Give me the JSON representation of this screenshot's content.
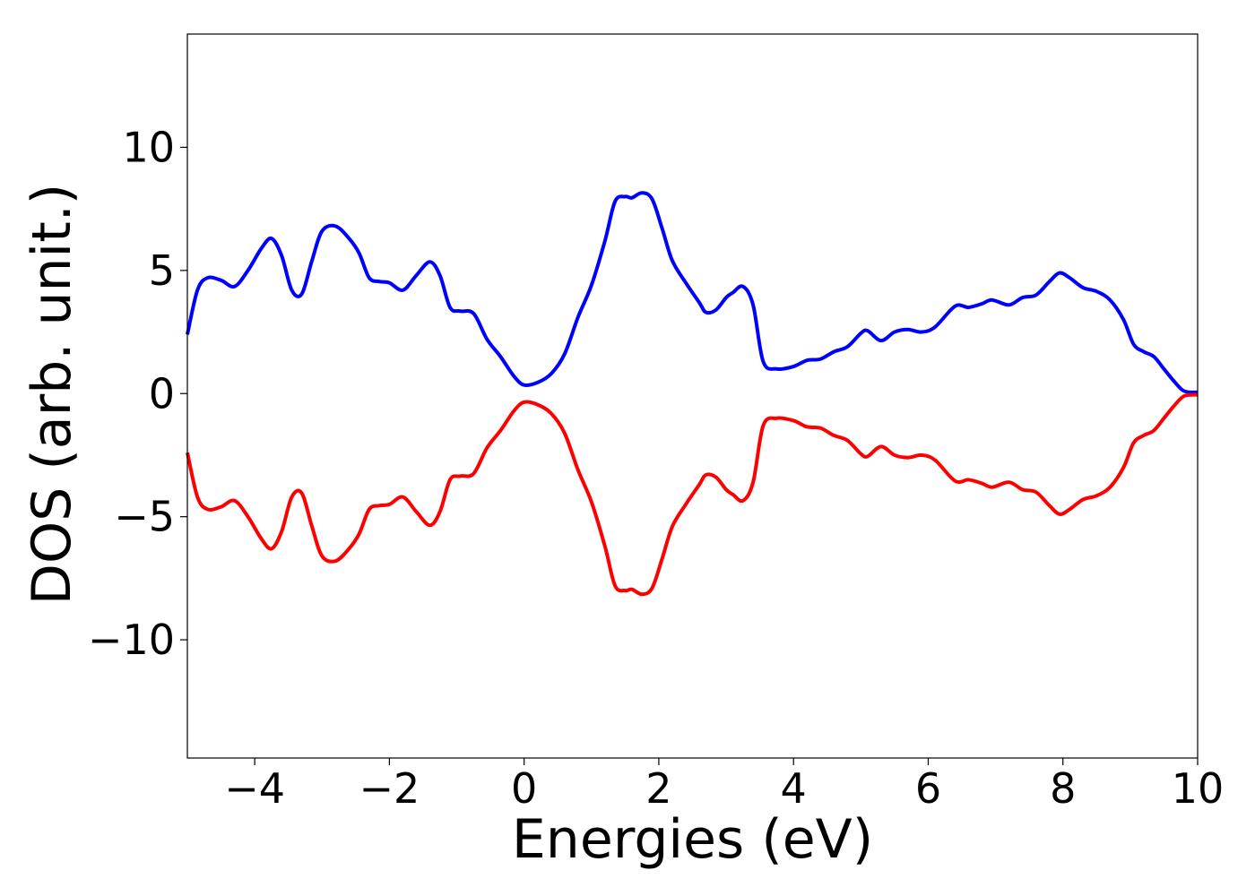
{
  "chart_data": {
    "type": "line",
    "title": "",
    "xlabel": "Energies (eV)",
    "ylabel": "DOS (arb. unit.)",
    "xlim": [
      -5,
      10
    ],
    "ylim": [
      -14.8,
      14.6
    ],
    "xticks": [
      -4,
      -2,
      0,
      2,
      4,
      6,
      8,
      10
    ],
    "yticks": [
      -10,
      -5,
      0,
      5,
      10
    ],
    "xtick_labels": [
      "−4",
      "−2",
      "0",
      "2",
      "4",
      "6",
      "8",
      "10"
    ],
    "ytick_labels": [
      "−10",
      "−5",
      "0",
      "5",
      "10"
    ],
    "grid": false,
    "legend": null,
    "mirror": true,
    "series": [
      {
        "color": "#0000ff",
        "x": [
          -5.0,
          -4.85,
          -4.7,
          -4.5,
          -4.3,
          -4.1,
          -3.9,
          -3.75,
          -3.6,
          -3.45,
          -3.3,
          -3.15,
          -3.0,
          -2.8,
          -2.6,
          -2.45,
          -2.3,
          -2.15,
          -2.0,
          -1.8,
          -1.6,
          -1.4,
          -1.25,
          -1.1,
          -0.95,
          -0.75,
          -0.55,
          -0.35,
          -0.15,
          0.0,
          0.2,
          0.4,
          0.6,
          0.8,
          1.0,
          1.2,
          1.35,
          1.5,
          1.6,
          1.75,
          1.9,
          2.05,
          2.2,
          2.4,
          2.6,
          2.7,
          2.85,
          3.0,
          3.1,
          3.25,
          3.4,
          3.55,
          3.75,
          4.0,
          4.2,
          4.4,
          4.6,
          4.8,
          5.0,
          5.1,
          5.3,
          5.5,
          5.7,
          5.9,
          6.1,
          6.4,
          6.6,
          6.8,
          6.95,
          7.2,
          7.4,
          7.6,
          7.8,
          7.95,
          8.1,
          8.3,
          8.5,
          8.7,
          8.9,
          9.05,
          9.2,
          9.35,
          9.5,
          9.65,
          9.8,
          10.0
        ],
        "values": [
          2.4,
          4.2,
          4.7,
          4.6,
          4.35,
          5.0,
          5.9,
          6.3,
          5.6,
          4.2,
          4.05,
          5.4,
          6.6,
          6.8,
          6.3,
          5.7,
          4.7,
          4.55,
          4.5,
          4.2,
          4.8,
          5.35,
          4.8,
          3.5,
          3.35,
          3.25,
          2.2,
          1.5,
          0.7,
          0.35,
          0.45,
          0.8,
          1.6,
          3.1,
          4.4,
          6.2,
          7.8,
          8.0,
          7.95,
          8.15,
          7.9,
          6.7,
          5.4,
          4.5,
          3.7,
          3.3,
          3.4,
          3.9,
          4.1,
          4.35,
          3.6,
          1.3,
          1.0,
          1.1,
          1.35,
          1.4,
          1.7,
          1.9,
          2.45,
          2.55,
          2.15,
          2.5,
          2.6,
          2.5,
          2.7,
          3.55,
          3.5,
          3.65,
          3.8,
          3.6,
          3.9,
          4.0,
          4.55,
          4.9,
          4.7,
          4.3,
          4.15,
          3.8,
          3.0,
          2.0,
          1.7,
          1.5,
          1.0,
          0.5,
          0.1,
          0.05
        ]
      },
      {
        "color": "#ff0000",
        "x": [
          -5.0,
          -4.85,
          -4.7,
          -4.5,
          -4.3,
          -4.1,
          -3.9,
          -3.75,
          -3.6,
          -3.45,
          -3.3,
          -3.15,
          -3.0,
          -2.8,
          -2.6,
          -2.45,
          -2.3,
          -2.15,
          -2.0,
          -1.8,
          -1.6,
          -1.4,
          -1.25,
          -1.1,
          -0.95,
          -0.75,
          -0.55,
          -0.35,
          -0.15,
          0.0,
          0.2,
          0.4,
          0.6,
          0.8,
          1.0,
          1.2,
          1.35,
          1.5,
          1.6,
          1.75,
          1.9,
          2.05,
          2.2,
          2.4,
          2.6,
          2.7,
          2.85,
          3.0,
          3.1,
          3.25,
          3.4,
          3.55,
          3.75,
          4.0,
          4.2,
          4.4,
          4.6,
          4.8,
          5.0,
          5.1,
          5.3,
          5.5,
          5.7,
          5.9,
          6.1,
          6.4,
          6.6,
          6.8,
          6.95,
          7.2,
          7.4,
          7.6,
          7.8,
          7.95,
          8.1,
          8.3,
          8.5,
          8.7,
          8.9,
          9.05,
          9.2,
          9.35,
          9.5,
          9.65,
          9.8,
          10.0
        ],
        "values": [
          -2.4,
          -4.2,
          -4.7,
          -4.6,
          -4.35,
          -5.0,
          -5.9,
          -6.3,
          -5.6,
          -4.2,
          -4.05,
          -5.4,
          -6.6,
          -6.8,
          -6.3,
          -5.7,
          -4.7,
          -4.55,
          -4.5,
          -4.2,
          -4.8,
          -5.35,
          -4.8,
          -3.5,
          -3.35,
          -3.25,
          -2.2,
          -1.5,
          -0.7,
          -0.35,
          -0.45,
          -0.8,
          -1.6,
          -3.1,
          -4.4,
          -6.2,
          -7.8,
          -8.0,
          -7.95,
          -8.15,
          -7.9,
          -6.7,
          -5.4,
          -4.5,
          -3.7,
          -3.3,
          -3.4,
          -3.9,
          -4.1,
          -4.35,
          -3.6,
          -1.3,
          -1.0,
          -1.1,
          -1.35,
          -1.4,
          -1.7,
          -1.9,
          -2.45,
          -2.55,
          -2.15,
          -2.5,
          -2.6,
          -2.5,
          -2.7,
          -3.55,
          -3.5,
          -3.65,
          -3.8,
          -3.6,
          -3.9,
          -4.0,
          -4.55,
          -4.9,
          -4.7,
          -4.3,
          -4.15,
          -3.8,
          -3.0,
          -2.0,
          -1.7,
          -1.5,
          -1.0,
          -0.5,
          -0.1,
          -0.05
        ]
      }
    ]
  }
}
